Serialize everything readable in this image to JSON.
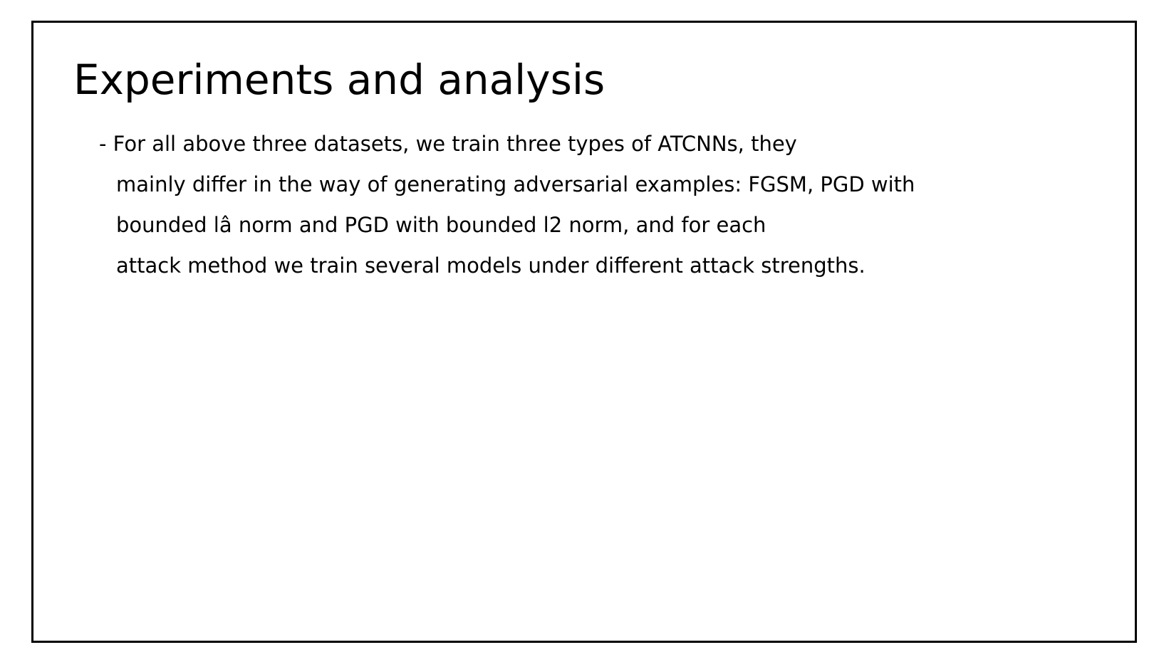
{
  "slide": {
    "title": "Experiments and analysis",
    "bullet_lines": [
      "- For all above three datasets, we train three types of ATCNNs, they",
      "mainly differ in the way of generating adversarial examples: FGSM, PGD with",
      "bounded lâ\u001f\u001f norm and PGD with bounded l2 norm, and for each",
      "attack method we train several models under different attack strengths."
    ]
  }
}
